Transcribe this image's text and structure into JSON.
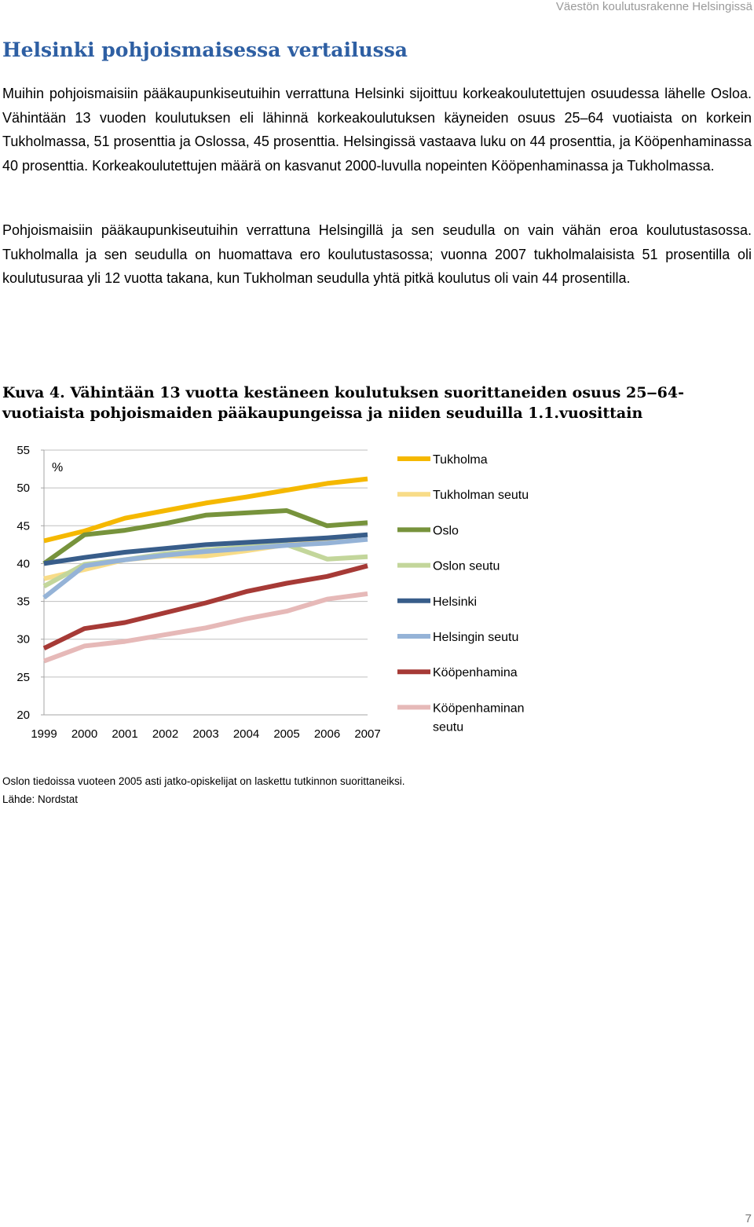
{
  "header": {
    "running_title": "Väestön koulutusrakenne Helsingissä"
  },
  "section": {
    "title": "Helsinki pohjoismaisessa vertailussa",
    "paragraphs": [
      "Muihin pohjoismaisiin pääkaupunkiseutuihin verrattuna Helsinki sijoittuu korkeakoulutettujen osuudessa lähelle Osloa. Vähintään 13 vuoden koulutuksen eli lähinnä korkeakoulutuksen käyneiden osuus 25–64 vuotiaista on korkein Tukholmassa, 51 prosenttia ja Oslossa, 45 prosenttia. Helsingissä vastaava luku on 44 prosenttia, ja Kööpenhaminassa 40 prosenttia. Korkeakoulutettujen määrä on kasvanut 2000-luvulla nopeinten Kööpenhaminassa ja Tukholmassa.",
      "Pohjoismaisiin pääkaupunkiseutuihin verrattuna Helsingillä ja sen seudulla on vain vähän eroa koulutus­tasossa. Tukholmalla ja sen seudulla on huomattava ero koulutustasossa; vuonna 2007 tukholmalaisista 51 prosentilla oli koulutusuraa yli 12 vuotta takana, kun Tukholman seudulla yhtä pitkä koulutus oli vain 44 prosentilla."
    ]
  },
  "figure": {
    "caption": "Kuva 4. Vähintään 13 vuotta kestäneen koulutuksen suorittaneiden osuus 25‒64-vuotiaista pohjoismaiden pääkaupungeissa ja niiden seuduilla 1.1.vuosittain",
    "notes": [
      "Oslon tiedoissa vuoteen 2005 asti jatko-opiskelijat on laskettu tutkinnon suorittaneiksi.",
      "Lähde: Nordstat"
    ]
  },
  "chart_data": {
    "type": "line",
    "ylabel": "%",
    "ylim": [
      20,
      55
    ],
    "yticks": [
      "55",
      "50",
      "45",
      "40",
      "35",
      "30",
      "25",
      "20"
    ],
    "x": [
      "1999",
      "2000",
      "2001",
      "2002",
      "2003",
      "2004",
      "2005",
      "2006",
      "2007"
    ],
    "grid": true,
    "legend_position": "right",
    "series": [
      {
        "name": "Tukholma",
        "color": "#f5b800",
        "values": [
          43.0,
          44.3,
          46.0,
          47.0,
          48.0,
          48.8,
          49.7,
          50.6,
          51.2
        ]
      },
      {
        "name": "Tukholman seutu",
        "color": "#f8dc88",
        "values": [
          38.0,
          39.2,
          40.5,
          41.0,
          41.0,
          41.7,
          42.5,
          43.2,
          43.8
        ]
      },
      {
        "name": "Oslo",
        "color": "#77933c",
        "values": [
          40.0,
          43.8,
          44.4,
          45.3,
          46.4,
          46.7,
          47.0,
          45.0,
          45.4
        ]
      },
      {
        "name": "Oslon seutu",
        "color": "#c3d69b",
        "values": [
          37.0,
          39.9,
          40.5,
          41.3,
          41.8,
          42.2,
          42.5,
          40.6,
          40.9
        ]
      },
      {
        "name": "Helsinki",
        "color": "#385d8a",
        "values": [
          40.0,
          40.8,
          41.5,
          42.0,
          42.5,
          42.8,
          43.1,
          43.4,
          43.8
        ]
      },
      {
        "name": "Helsingin seutu",
        "color": "#95b3d7",
        "values": [
          35.5,
          39.7,
          40.5,
          41.1,
          41.6,
          42.0,
          42.4,
          42.7,
          43.2
        ]
      },
      {
        "name": "Kööpenhamina",
        "color": "#a63a36",
        "values": [
          28.8,
          31.4,
          32.2,
          33.5,
          34.8,
          36.3,
          37.4,
          38.3,
          39.7
        ]
      },
      {
        "name": "Kööpenhaminan seutu",
        "legend_lines": [
          "Kööpenhaminan",
          "seutu"
        ],
        "color": "#e6b9b8",
        "values": [
          27.1,
          29.1,
          29.7,
          30.6,
          31.5,
          32.7,
          33.7,
          35.3,
          36.0
        ]
      }
    ]
  },
  "page": {
    "number": "7"
  }
}
